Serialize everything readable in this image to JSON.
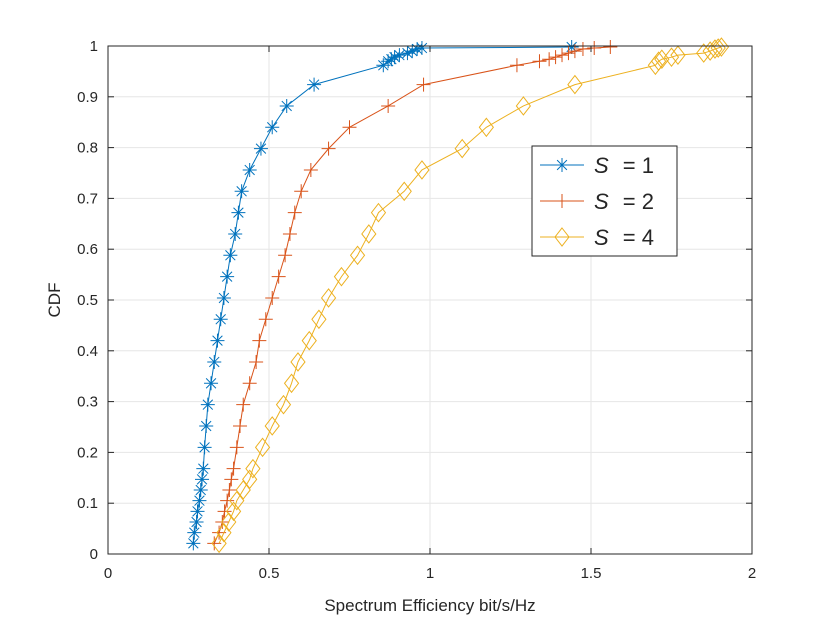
{
  "chart_data": {
    "type": "line",
    "title": "",
    "xlabel": "Spectrum Efficiency bit/s/Hz",
    "ylabel": "CDF",
    "xlim": [
      0,
      2
    ],
    "ylim": [
      0,
      1
    ],
    "xticks": [
      0,
      0.5,
      1,
      1.5,
      2
    ],
    "xtick_labels": [
      "0",
      "0.5",
      "1",
      "1.5",
      "2"
    ],
    "yticks": [
      0,
      0.1,
      0.2,
      0.3,
      0.4,
      0.5,
      0.6,
      0.7,
      0.8,
      0.9,
      1
    ],
    "ytick_labels": [
      "0",
      "0.1",
      "0.2",
      "0.3",
      "0.4",
      "0.5",
      "0.6",
      "0.7",
      "0.8",
      "0.9",
      "1"
    ],
    "grid": true,
    "legend_position": "middle-right",
    "series": [
      {
        "name_prefix": "S",
        "name_suffix": " = 1",
        "color": "#0072BD",
        "marker": "asterisk",
        "points": [
          [
            0.265,
            0.021
          ],
          [
            0.268,
            0.042
          ],
          [
            0.275,
            0.063
          ],
          [
            0.278,
            0.084
          ],
          [
            0.284,
            0.105
          ],
          [
            0.288,
            0.126
          ],
          [
            0.292,
            0.147
          ],
          [
            0.296,
            0.168
          ],
          [
            0.3,
            0.21
          ],
          [
            0.305,
            0.252
          ],
          [
            0.31,
            0.294
          ],
          [
            0.32,
            0.336
          ],
          [
            0.33,
            0.378
          ],
          [
            0.34,
            0.42
          ],
          [
            0.35,
            0.462
          ],
          [
            0.36,
            0.504
          ],
          [
            0.37,
            0.546
          ],
          [
            0.38,
            0.588
          ],
          [
            0.395,
            0.63
          ],
          [
            0.405,
            0.672
          ],
          [
            0.415,
            0.714
          ],
          [
            0.44,
            0.756
          ],
          [
            0.475,
            0.798
          ],
          [
            0.51,
            0.84
          ],
          [
            0.555,
            0.882
          ],
          [
            0.64,
            0.924
          ],
          [
            0.855,
            0.962
          ],
          [
            0.87,
            0.97
          ],
          [
            0.88,
            0.974
          ],
          [
            0.89,
            0.978
          ],
          [
            0.905,
            0.982
          ],
          [
            0.93,
            0.986
          ],
          [
            0.945,
            0.99
          ],
          [
            0.96,
            0.994
          ],
          [
            0.975,
            0.996
          ],
          [
            1.44,
            0.998
          ]
        ]
      },
      {
        "name_prefix": "S",
        "name_suffix": " = 2",
        "color": "#D95319",
        "marker": "plus",
        "points": [
          [
            0.33,
            0.021
          ],
          [
            0.345,
            0.042
          ],
          [
            0.355,
            0.063
          ],
          [
            0.362,
            0.084
          ],
          [
            0.37,
            0.105
          ],
          [
            0.377,
            0.126
          ],
          [
            0.383,
            0.147
          ],
          [
            0.39,
            0.168
          ],
          [
            0.4,
            0.21
          ],
          [
            0.41,
            0.252
          ],
          [
            0.42,
            0.294
          ],
          [
            0.44,
            0.336
          ],
          [
            0.46,
            0.378
          ],
          [
            0.47,
            0.42
          ],
          [
            0.49,
            0.462
          ],
          [
            0.51,
            0.504
          ],
          [
            0.53,
            0.546
          ],
          [
            0.55,
            0.588
          ],
          [
            0.565,
            0.63
          ],
          [
            0.58,
            0.672
          ],
          [
            0.6,
            0.714
          ],
          [
            0.63,
            0.756
          ],
          [
            0.685,
            0.798
          ],
          [
            0.75,
            0.84
          ],
          [
            0.87,
            0.882
          ],
          [
            0.98,
            0.924
          ],
          [
            1.27,
            0.962
          ],
          [
            1.34,
            0.97
          ],
          [
            1.37,
            0.974
          ],
          [
            1.39,
            0.978
          ],
          [
            1.41,
            0.982
          ],
          [
            1.43,
            0.986
          ],
          [
            1.45,
            0.99
          ],
          [
            1.475,
            0.994
          ],
          [
            1.51,
            0.996
          ],
          [
            1.56,
            0.998
          ]
        ]
      },
      {
        "name_prefix": "S",
        "name_suffix": " = 4",
        "color": "#EDB120",
        "marker": "diamond",
        "points": [
          [
            0.345,
            0.021
          ],
          [
            0.36,
            0.042
          ],
          [
            0.375,
            0.063
          ],
          [
            0.39,
            0.084
          ],
          [
            0.4,
            0.105
          ],
          [
            0.42,
            0.126
          ],
          [
            0.44,
            0.147
          ],
          [
            0.45,
            0.168
          ],
          [
            0.48,
            0.21
          ],
          [
            0.51,
            0.252
          ],
          [
            0.545,
            0.294
          ],
          [
            0.57,
            0.336
          ],
          [
            0.59,
            0.378
          ],
          [
            0.625,
            0.42
          ],
          [
            0.655,
            0.462
          ],
          [
            0.685,
            0.504
          ],
          [
            0.725,
            0.546
          ],
          [
            0.775,
            0.588
          ],
          [
            0.81,
            0.63
          ],
          [
            0.84,
            0.672
          ],
          [
            0.92,
            0.714
          ],
          [
            0.975,
            0.756
          ],
          [
            1.1,
            0.798
          ],
          [
            1.175,
            0.84
          ],
          [
            1.29,
            0.882
          ],
          [
            1.45,
            0.924
          ],
          [
            1.7,
            0.962
          ],
          [
            1.71,
            0.97
          ],
          [
            1.72,
            0.974
          ],
          [
            1.75,
            0.978
          ],
          [
            1.77,
            0.982
          ],
          [
            1.85,
            0.986
          ],
          [
            1.87,
            0.99
          ],
          [
            1.885,
            0.994
          ],
          [
            1.895,
            0.996
          ],
          [
            1.905,
            0.998
          ]
        ]
      }
    ]
  }
}
